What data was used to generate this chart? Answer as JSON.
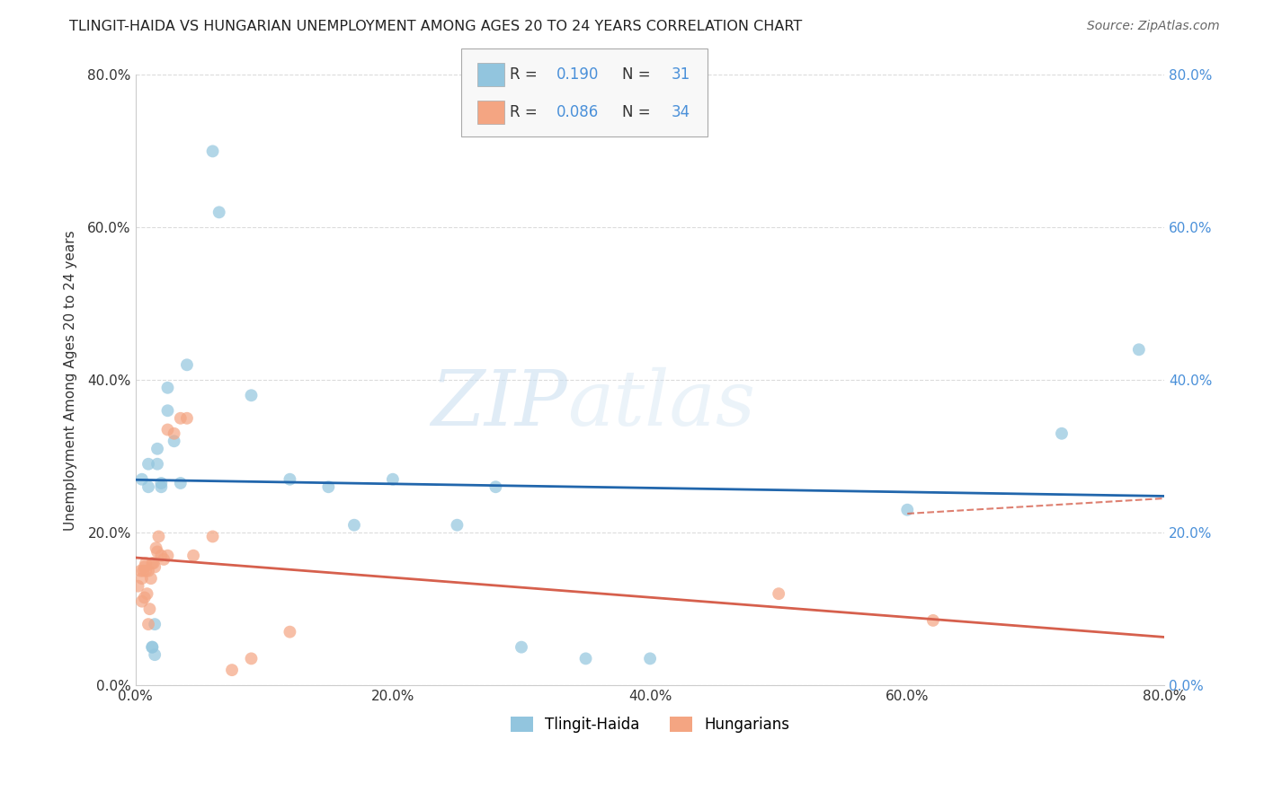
{
  "title": "TLINGIT-HAIDA VS HUNGARIAN UNEMPLOYMENT AMONG AGES 20 TO 24 YEARS CORRELATION CHART",
  "source": "Source: ZipAtlas.com",
  "ylabel": "Unemployment Among Ages 20 to 24 years",
  "xlim": [
    0.0,
    0.8
  ],
  "ylim": [
    0.0,
    0.8
  ],
  "xticks": [
    0.0,
    0.2,
    0.4,
    0.6,
    0.8
  ],
  "yticks": [
    0.0,
    0.2,
    0.4,
    0.6,
    0.8
  ],
  "xtick_labels": [
    "0.0%",
    "20.0%",
    "40.0%",
    "60.0%",
    "80.0%"
  ],
  "ytick_labels": [
    "0.0%",
    "20.0%",
    "40.0%",
    "60.0%",
    "80.0%"
  ],
  "series": [
    {
      "name": "Tlingit-Haida",
      "R": 0.19,
      "N": 31,
      "scatter_color": "#92c5de",
      "line_color": "#2166ac",
      "line_style": "solid",
      "x": [
        0.005,
        0.01,
        0.01,
        0.013,
        0.013,
        0.015,
        0.015,
        0.017,
        0.017,
        0.02,
        0.02,
        0.025,
        0.025,
        0.03,
        0.035,
        0.04,
        0.06,
        0.065,
        0.09,
        0.12,
        0.15,
        0.17,
        0.2,
        0.25,
        0.28,
        0.3,
        0.35,
        0.4,
        0.6,
        0.72,
        0.78
      ],
      "y": [
        0.27,
        0.29,
        0.26,
        0.05,
        0.05,
        0.08,
        0.04,
        0.29,
        0.31,
        0.26,
        0.265,
        0.39,
        0.36,
        0.32,
        0.265,
        0.42,
        0.7,
        0.62,
        0.38,
        0.27,
        0.26,
        0.21,
        0.27,
        0.21,
        0.26,
        0.05,
        0.035,
        0.035,
        0.23,
        0.33,
        0.44
      ]
    },
    {
      "name": "Hungarians",
      "R": 0.086,
      "N": 34,
      "scatter_color": "#f4a582",
      "line_color": "#d6604d",
      "line_style": "solid",
      "x": [
        0.002,
        0.004,
        0.005,
        0.005,
        0.006,
        0.007,
        0.007,
        0.008,
        0.008,
        0.009,
        0.01,
        0.01,
        0.011,
        0.012,
        0.013,
        0.014,
        0.015,
        0.016,
        0.017,
        0.018,
        0.02,
        0.022,
        0.025,
        0.025,
        0.03,
        0.035,
        0.04,
        0.045,
        0.06,
        0.075,
        0.09,
        0.12,
        0.5,
        0.62
      ],
      "y": [
        0.13,
        0.15,
        0.14,
        0.11,
        0.15,
        0.155,
        0.115,
        0.15,
        0.16,
        0.12,
        0.15,
        0.08,
        0.1,
        0.14,
        0.16,
        0.16,
        0.155,
        0.18,
        0.175,
        0.195,
        0.17,
        0.165,
        0.335,
        0.17,
        0.33,
        0.35,
        0.35,
        0.17,
        0.195,
        0.02,
        0.035,
        0.07,
        0.12,
        0.085
      ]
    }
  ],
  "watermark_zip": "ZIP",
  "watermark_atlas": "atlas",
  "background_color": "#ffffff",
  "grid_color": "#cccccc",
  "right_tick_color": "#4a90d9",
  "legend_R_N_color": "#4a90d9",
  "legend_label_color": "#333333"
}
